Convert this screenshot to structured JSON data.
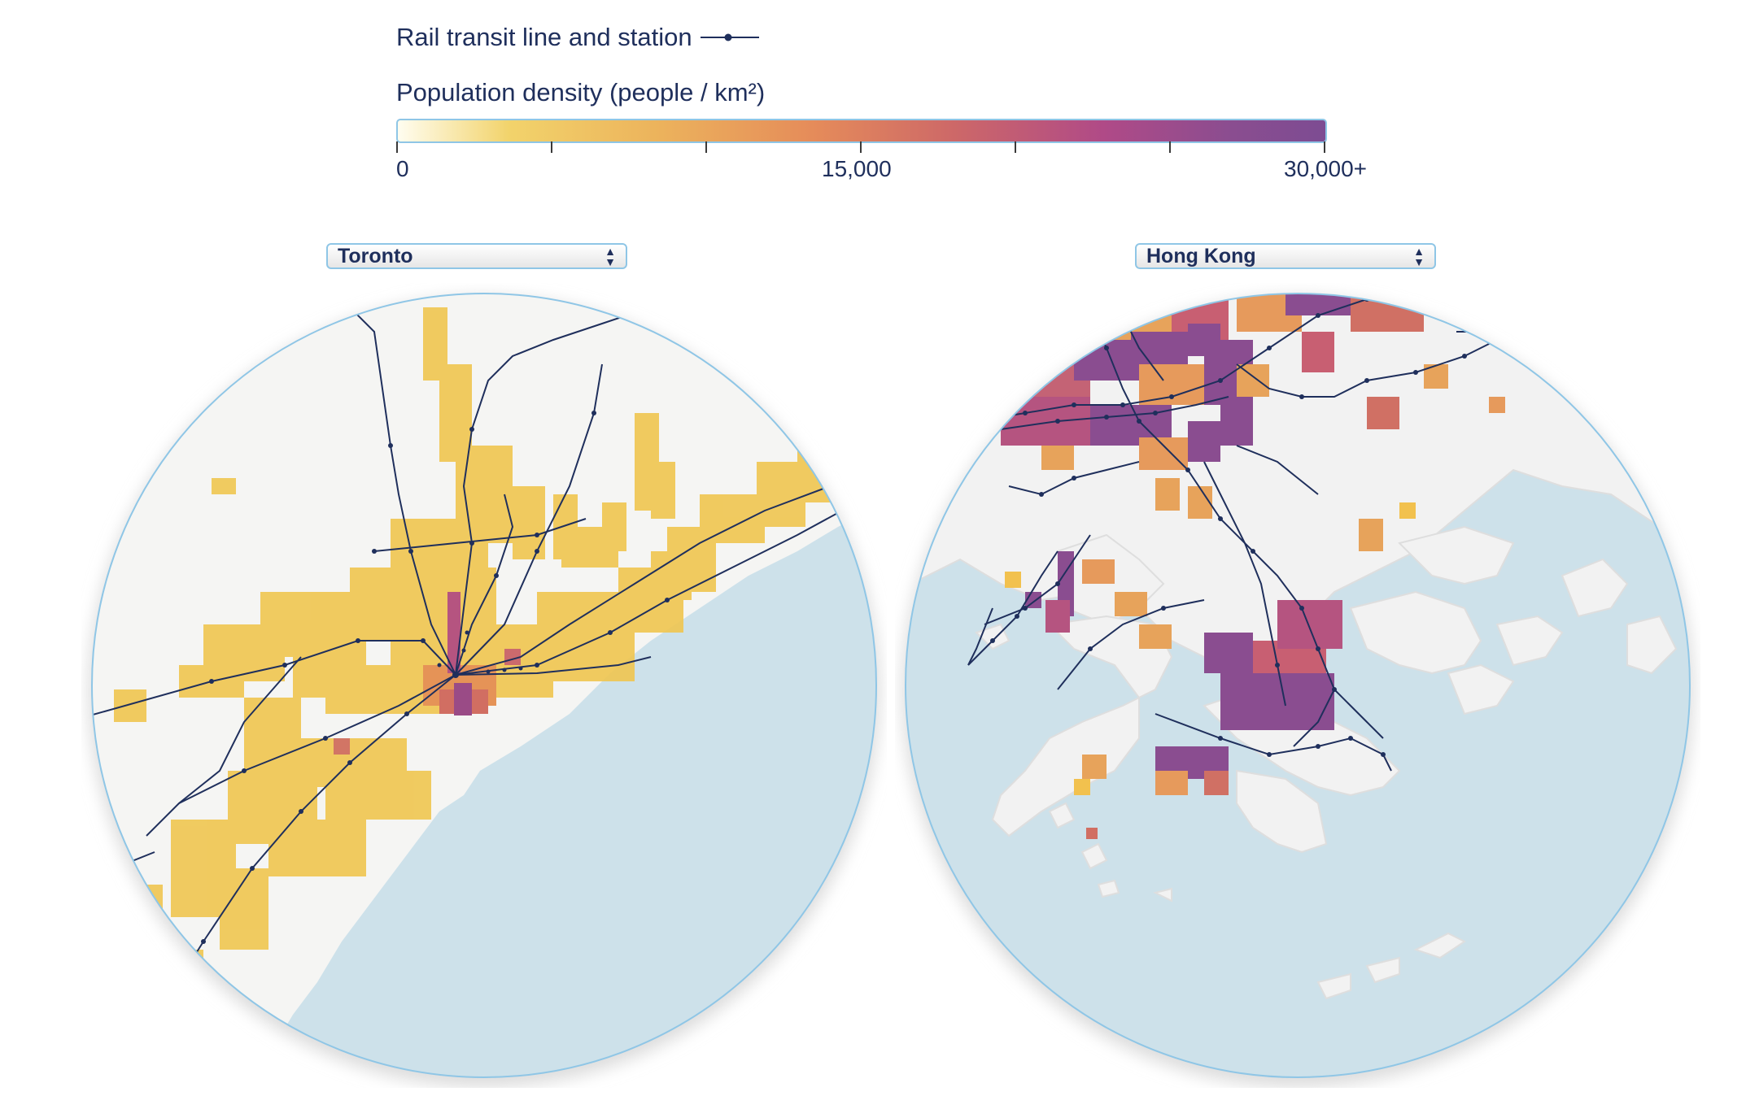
{
  "legend": {
    "rail_label": "Rail transit line and station",
    "density_label": "Population density (people / km²)",
    "scale": {
      "min_label": "0",
      "mid_label": "15,000",
      "max_label": "30,000+",
      "min": 0,
      "max": 30000,
      "tick_values": [
        0,
        5000,
        10000,
        15000,
        20000,
        25000,
        30000
      ]
    },
    "colors": {
      "rail": "#1f2f5c",
      "low": "#f2d36b",
      "mid": "#e58b5a",
      "high": "#7d4c92",
      "water": "#cde1ea",
      "land": "#f4f4f4",
      "border": "#8fc6e6"
    }
  },
  "maps": {
    "left": {
      "city": "Toronto"
    },
    "right": {
      "city": "Hong Kong"
    }
  },
  "icons": {
    "select_arrows": "up-down-arrows-icon",
    "station": "station-dot-icon"
  }
}
